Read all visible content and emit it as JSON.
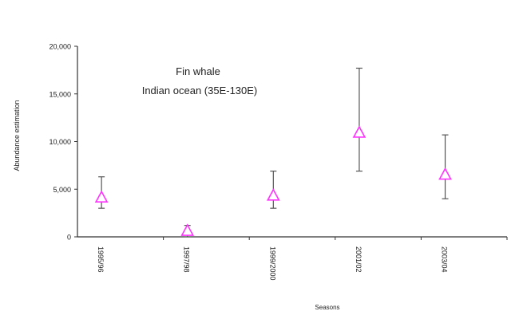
{
  "chart_data": {
    "type": "scatter",
    "annotation_lines": [
      "Fin whale",
      "Indian ocean (35E-130E)"
    ],
    "xlabel": "Seasons",
    "ylabel": "Abundance estimation",
    "categories": [
      "1995/96",
      "1997/98",
      "1999/2000",
      "2001/02",
      "2003/04"
    ],
    "values": [
      4100,
      600,
      4300,
      10900,
      6500
    ],
    "error_low": [
      3000,
      0,
      3000,
      6900,
      4000
    ],
    "error_high": [
      6300,
      1200,
      6900,
      17700,
      10700
    ],
    "ylim": [
      0,
      20000
    ],
    "yticks": [
      0,
      5000,
      10000,
      15000,
      20000
    ],
    "ytick_labels": [
      "0",
      "5,000",
      "10,000",
      "15,000",
      "20,000"
    ],
    "marker": "open-triangle",
    "marker_color": "#ff33ff",
    "errorbar_color": "#555555",
    "grid": false,
    "legend": "none"
  }
}
